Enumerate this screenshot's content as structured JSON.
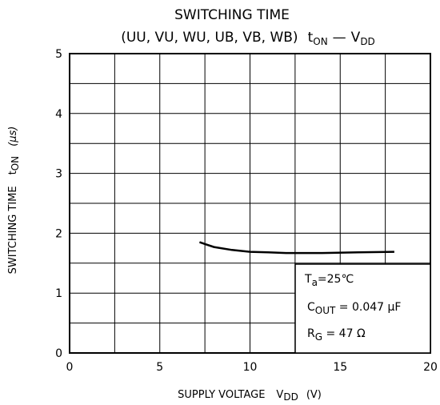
{
  "chart_data": {
    "type": "line",
    "title": "SWITCHING TIME",
    "subtitle": [
      "(UU, VU, WU, UB, VB, WB)",
      "t",
      "ON",
      "—",
      "V",
      "DD"
    ],
    "x_label": [
      "SUPPLY VOLTAGE",
      "V",
      "DD",
      "(V)"
    ],
    "y_label": [
      "SWITCHING TIME",
      "t",
      "ON",
      "(μs)"
    ],
    "annotations": [
      [
        "T",
        "a",
        "=25℃"
      ],
      [
        "C",
        "OUT",
        " = 0.047 μF"
      ],
      [
        "R",
        "G",
        " = 47 Ω"
      ]
    ],
    "x": [
      7.2,
      8,
      9,
      10,
      11,
      12,
      14,
      16,
      18
    ],
    "values": [
      1.85,
      1.77,
      1.72,
      1.69,
      1.68,
      1.67,
      1.67,
      1.68,
      1.69
    ],
    "color": "#000000",
    "xlim": [
      0,
      20
    ],
    "xticks": [
      0,
      5,
      10,
      15,
      20
    ],
    "ylim": [
      0,
      5
    ],
    "yticks": [
      0,
      1,
      2,
      3,
      4,
      5
    ],
    "grid": true
  }
}
